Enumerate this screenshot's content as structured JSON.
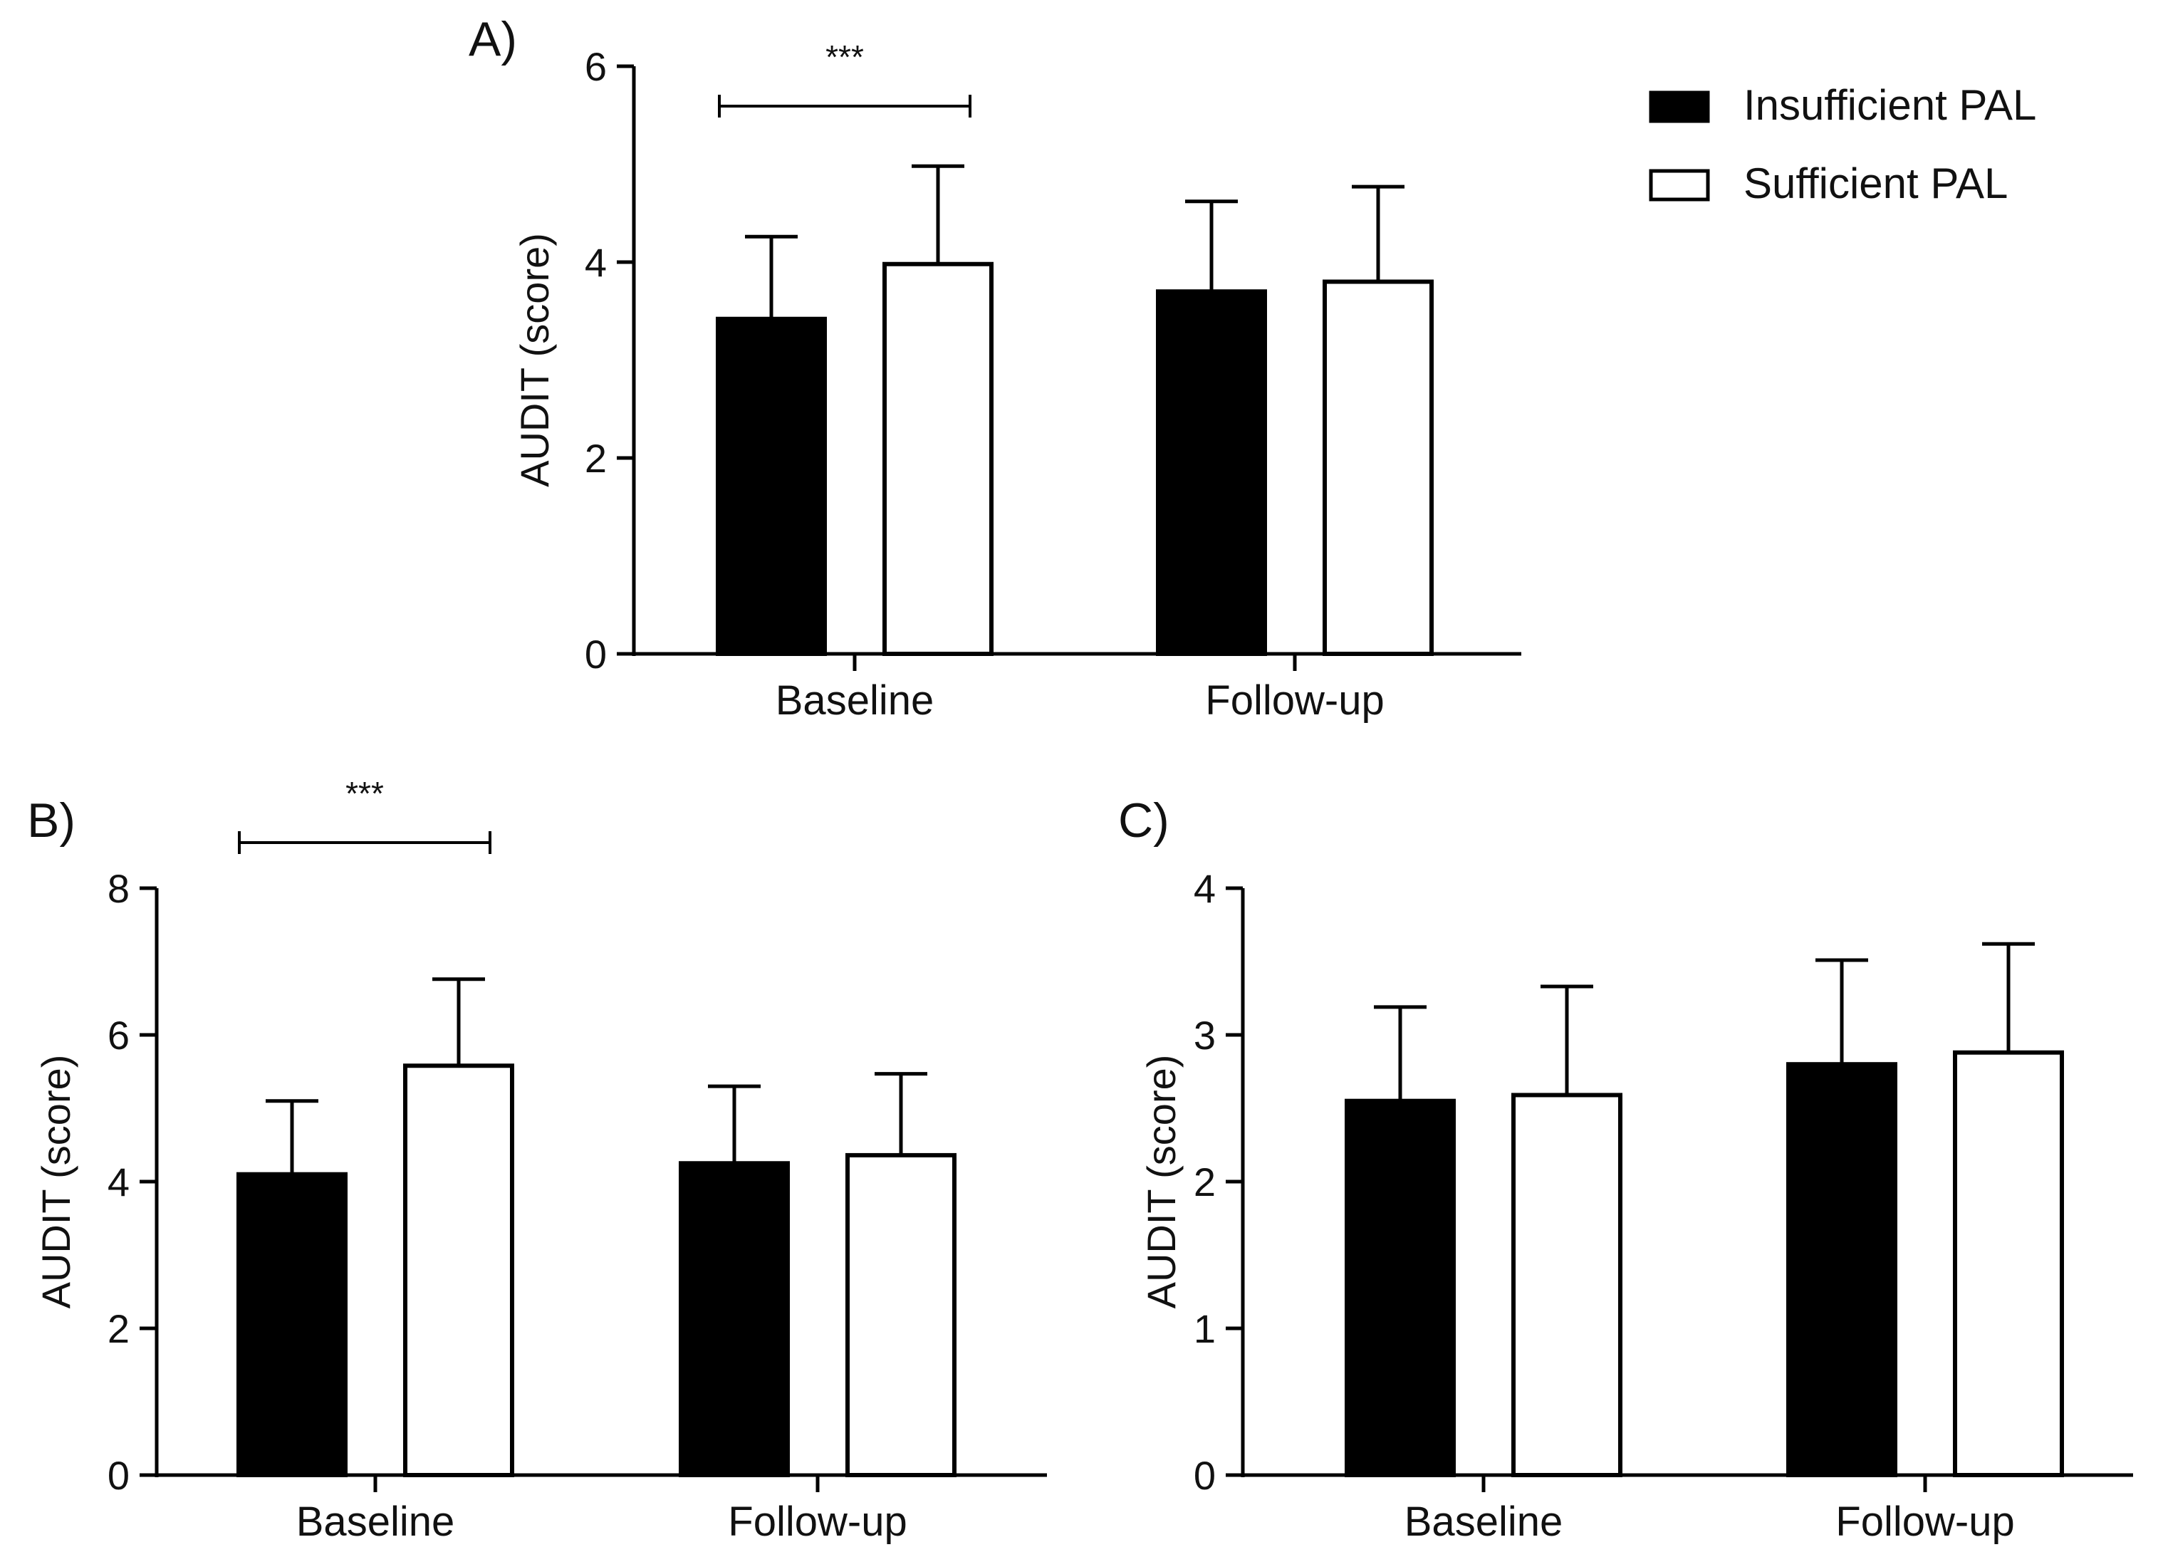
{
  "legend": {
    "items": [
      {
        "label": "Insufficient PAL",
        "fill": "#000000"
      },
      {
        "label": "Sufficient PAL",
        "fill": "#ffffff"
      }
    ]
  },
  "chart_data": [
    {
      "panel": "A)",
      "type": "bar",
      "categories": [
        "Baseline",
        "Follow-up"
      ],
      "ylabel": "AUDIT (score)",
      "ylim": [
        0,
        6
      ],
      "yticks": [
        0,
        2,
        4,
        6
      ],
      "series": [
        {
          "name": "Insufficient PAL",
          "values": [
            3.42,
            3.7
          ],
          "errors": [
            0.84,
            0.92
          ]
        },
        {
          "name": "Sufficient PAL",
          "values": [
            3.98,
            3.8
          ],
          "errors": [
            1.0,
            0.97
          ]
        }
      ],
      "annotations": [
        {
          "text": "***",
          "category": "Baseline"
        }
      ]
    },
    {
      "panel": "B)",
      "type": "bar",
      "categories": [
        "Baseline",
        "Follow-up"
      ],
      "ylabel": "AUDIT (score)",
      "ylim": [
        0,
        8
      ],
      "yticks": [
        0,
        2,
        4,
        6,
        8
      ],
      "series": [
        {
          "name": "Insufficient PAL",
          "values": [
            4.1,
            4.25
          ],
          "errors": [
            1.0,
            1.05
          ]
        },
        {
          "name": "Sufficient PAL",
          "values": [
            5.58,
            4.36
          ],
          "errors": [
            1.18,
            1.11
          ]
        }
      ],
      "annotations": [
        {
          "text": "***",
          "category": "Baseline"
        }
      ]
    },
    {
      "panel": "C)",
      "type": "bar",
      "categories": [
        "Baseline",
        "Follow-up"
      ],
      "ylabel": "AUDIT (score)",
      "ylim": [
        0,
        4
      ],
      "yticks": [
        0,
        1,
        2,
        3,
        4
      ],
      "series": [
        {
          "name": "Insufficient PAL",
          "values": [
            2.55,
            2.8
          ],
          "errors": [
            0.64,
            0.71
          ]
        },
        {
          "name": "Sufficient PAL",
          "values": [
            2.59,
            2.88
          ],
          "errors": [
            0.74,
            0.74
          ]
        }
      ],
      "annotations": []
    }
  ]
}
